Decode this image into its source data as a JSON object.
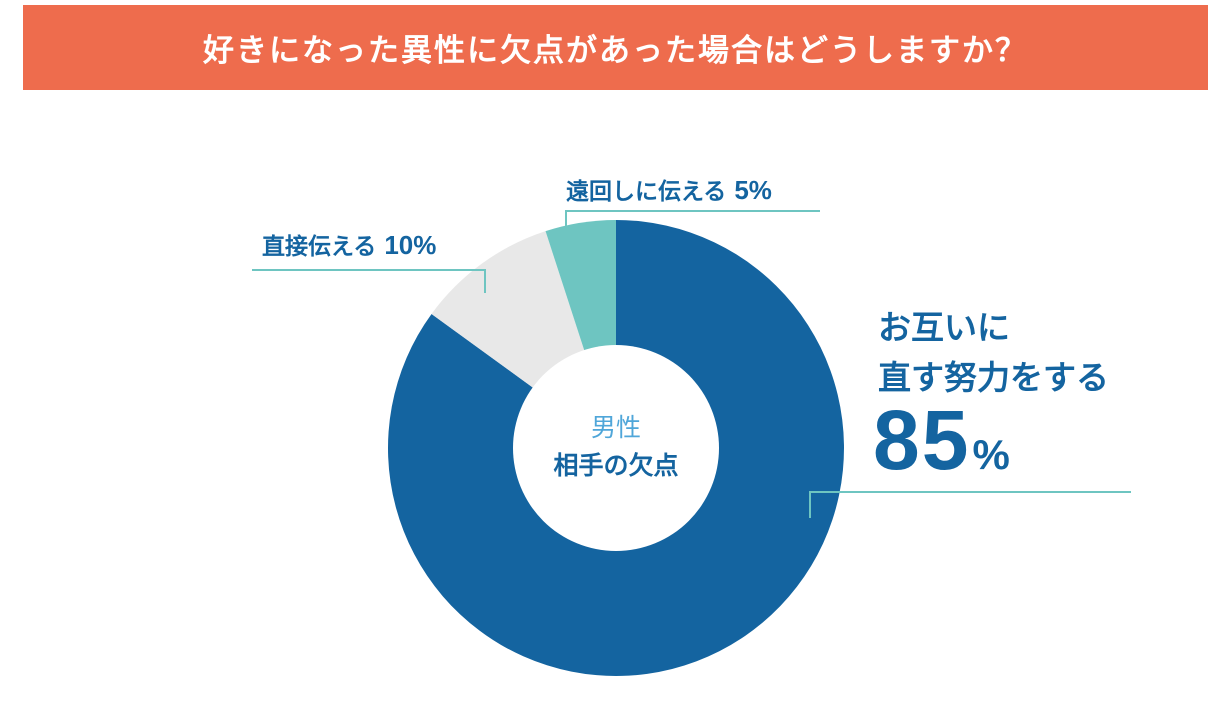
{
  "header": {
    "title": "好きになった異性に欠点があった場合はどうしますか？",
    "background_color": "#EE6C4D"
  },
  "center": {
    "line1": "男性",
    "line2": "相手の欠点"
  },
  "labels": {
    "main_line1": "お互いに",
    "main_line2": "直す努力をする",
    "main_value": "85",
    "main_unit": "%",
    "direct": "直接伝える",
    "direct_value": "10%",
    "indirect": "遠回しに伝える",
    "indirect_value": "5%"
  },
  "chart_data": {
    "type": "pie",
    "subtype": "donut",
    "series": [
      {
        "name": "お互いに直す努力をする",
        "value": 85,
        "color": "#1464A0"
      },
      {
        "name": "直接伝える",
        "value": 10,
        "color": "#E8E8E8"
      },
      {
        "name": "遠回しに伝える",
        "value": 5,
        "color": "#6EC5C1"
      }
    ],
    "start": "top",
    "direction": "clockwise"
  },
  "colors": {
    "primary": "#1464A0",
    "accent": "#6EC5C1",
    "neutral": "#E8E8E8",
    "leader": "#6EC5C1"
  }
}
